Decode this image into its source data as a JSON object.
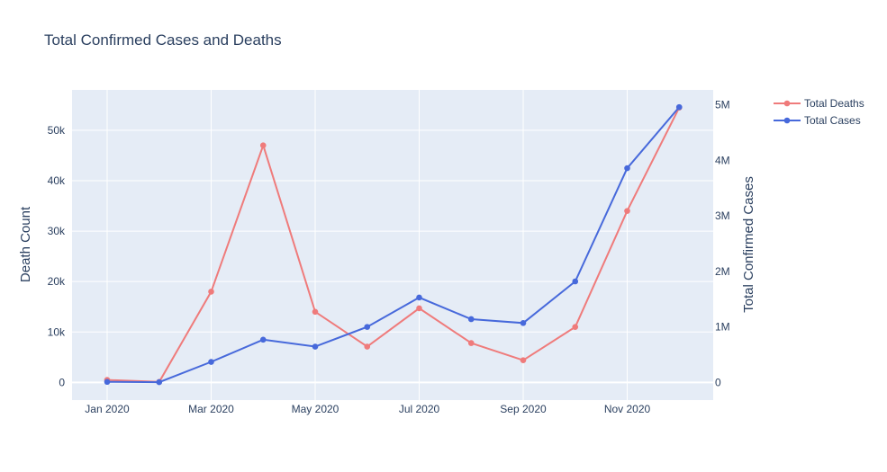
{
  "chart_data": {
    "type": "line",
    "title": "Total Confirmed Cases and Deaths",
    "x": [
      "2020-01",
      "2020-02",
      "2020-03",
      "2020-04",
      "2020-05",
      "2020-06",
      "2020-07",
      "2020-08",
      "2020-09",
      "2020-10",
      "2020-11",
      "2020-12"
    ],
    "x_tick_labels": [
      "Jan 2020",
      "Mar 2020",
      "May 2020",
      "Jul 2020",
      "Sep 2020",
      "Nov 2020"
    ],
    "y_left": {
      "label": "Death Count",
      "range": [
        -3500,
        58000
      ],
      "ticks": [
        0,
        10000,
        20000,
        30000,
        40000,
        50000
      ],
      "tick_labels": [
        "0",
        "10k",
        "20k",
        "30k",
        "40k",
        "50k"
      ]
    },
    "y_right": {
      "label": "Total Confirmed Cases",
      "range": [
        -318000,
        5270000
      ],
      "ticks": [
        0,
        1000000,
        2000000,
        3000000,
        4000000,
        5000000
      ],
      "tick_labels": [
        "0",
        "1M",
        "2M",
        "3M",
        "4M",
        "5M"
      ]
    },
    "series": [
      {
        "name": "Total Deaths",
        "axis": "left",
        "color": "#ef7b7b",
        "values": [
          500,
          100,
          18000,
          47000,
          14000,
          7100,
          14700,
          7800,
          4400,
          11000,
          34000,
          54500
        ]
      },
      {
        "name": "Total Cases",
        "axis": "right",
        "color": "#4769db",
        "values": [
          10000,
          5000,
          370000,
          770000,
          645000,
          1000000,
          1530000,
          1140000,
          1070000,
          1820000,
          3860000,
          4960000
        ]
      }
    ],
    "grid": true,
    "legend_position": "top-right",
    "background": "#e5ecf6"
  }
}
